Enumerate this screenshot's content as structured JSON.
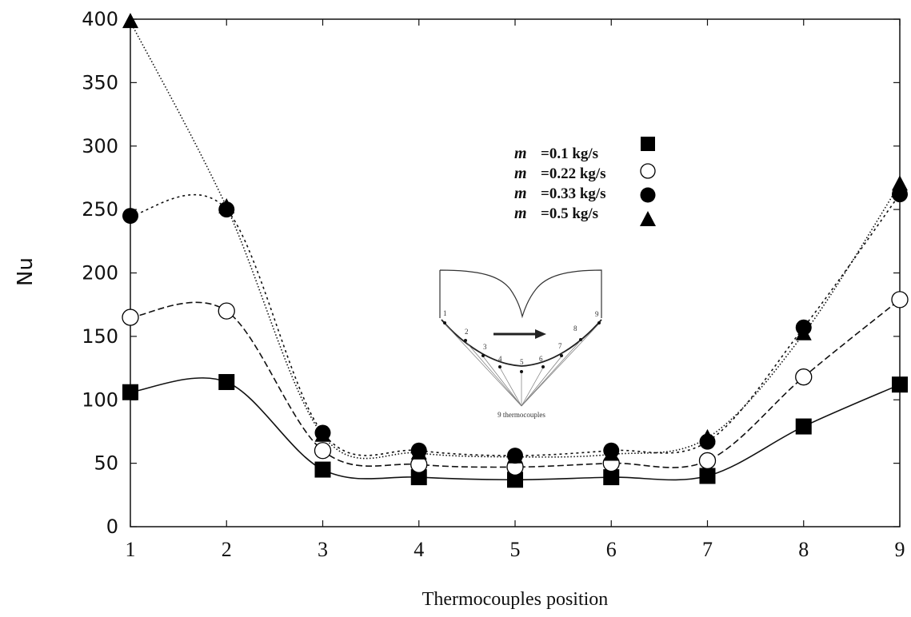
{
  "chart_data": {
    "type": "line",
    "xlabel": "Thermocouples position",
    "ylabel": "Nu",
    "x": [
      1,
      2,
      3,
      4,
      5,
      6,
      7,
      8,
      9
    ],
    "xlim": [
      1,
      9
    ],
    "ylim": [
      0,
      400
    ],
    "yticks": [
      0,
      50,
      100,
      150,
      200,
      250,
      300,
      350,
      400
    ],
    "grid": false,
    "legend_position": "top-right",
    "series": [
      {
        "name_prefix": "m",
        "name": "=0.1 kg/s",
        "marker": "filled-square",
        "line": "solid",
        "values": [
          106,
          114,
          45,
          39,
          37,
          39,
          40,
          79,
          112
        ]
      },
      {
        "name_prefix": "m",
        "name": "=0.22 kg/s",
        "marker": "open-circle",
        "line": "dashed",
        "values": [
          165,
          170,
          60,
          49,
          47,
          50,
          52,
          118,
          179
        ]
      },
      {
        "name_prefix": "m",
        "name": "=0.33 kg/s",
        "marker": "filled-circle",
        "line": "dotted",
        "values": [
          245,
          250,
          74,
          60,
          56,
          60,
          67,
          157,
          262
        ]
      },
      {
        "name_prefix": "m",
        "name": "=0.5 kg/s",
        "marker": "filled-triangle",
        "line": "densely-dotted",
        "values": [
          398,
          252,
          72,
          58,
          55,
          57,
          70,
          152,
          270
        ]
      }
    ],
    "inset": {
      "numbers": [
        "1",
        "2",
        "3",
        "4",
        "5",
        "6",
        "7",
        "8",
        "9"
      ],
      "caption": "9 thermocouples"
    }
  }
}
